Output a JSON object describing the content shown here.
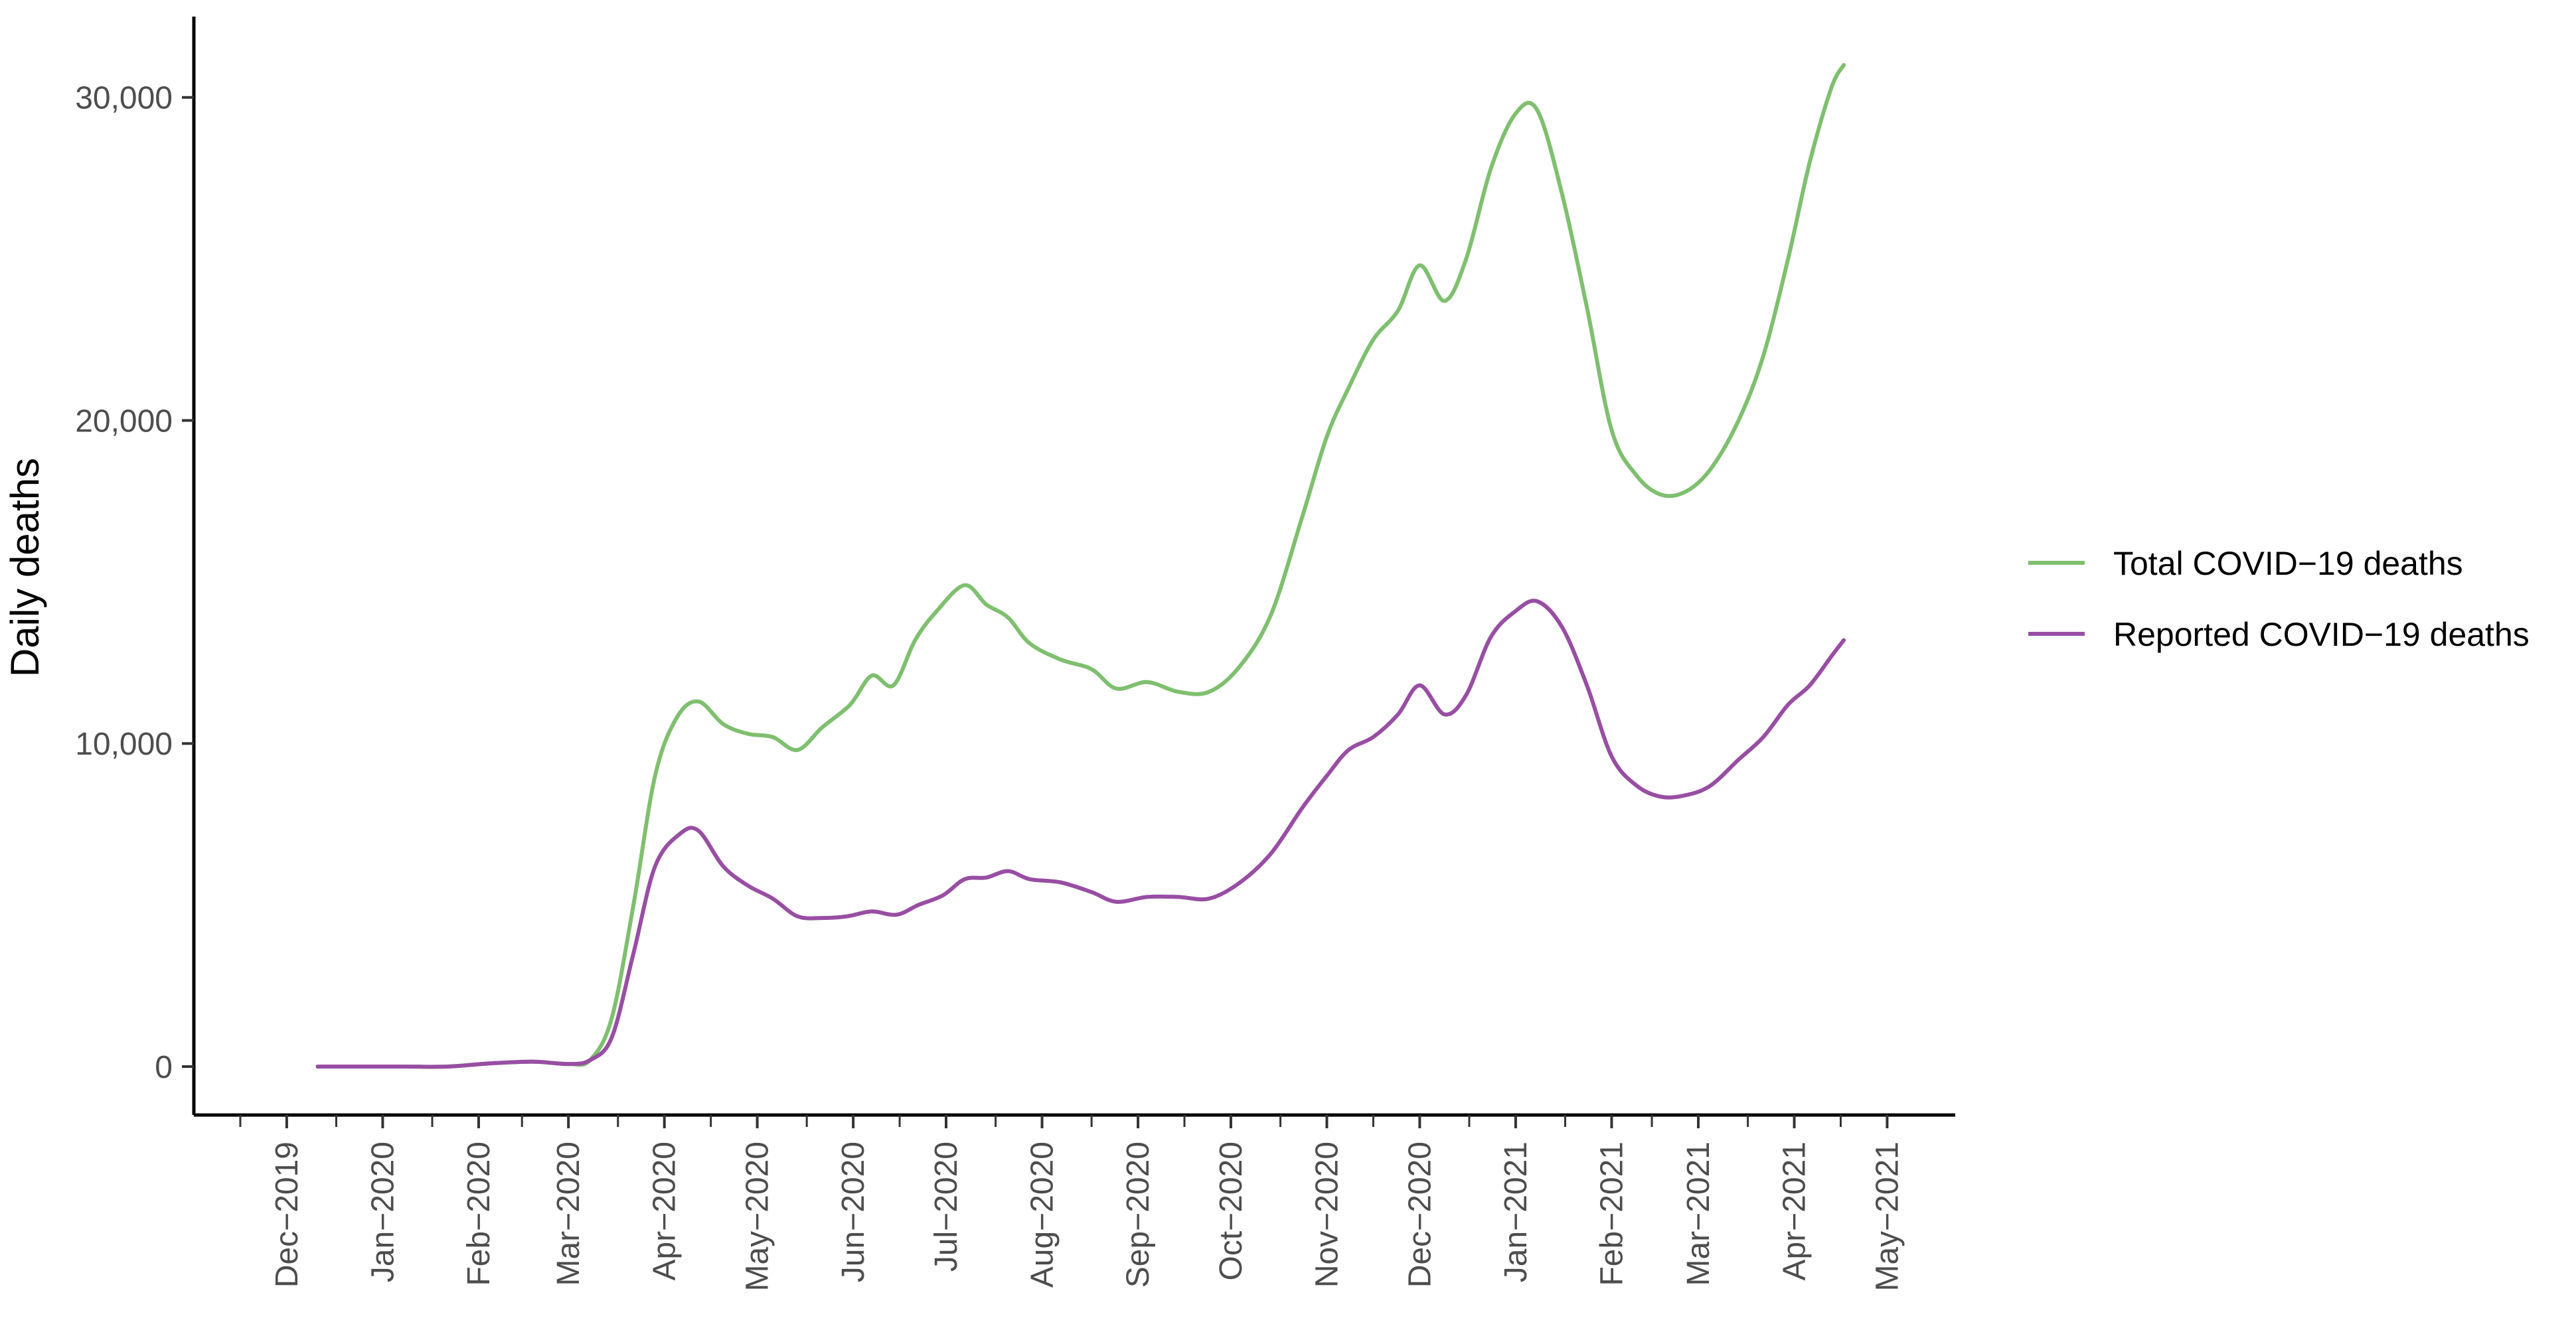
{
  "chart_data": {
    "type": "line",
    "xlabel": "",
    "ylabel": "Daily deaths",
    "x_tick_labels": [
      "Dec−2019",
      "Jan−2020",
      "Feb−2020",
      "Mar−2020",
      "Apr−2020",
      "May−2020",
      "Jun−2020",
      "Jul−2020",
      "Aug−2020",
      "Sep−2020",
      "Oct−2020",
      "Nov−2020",
      "Dec−2020",
      "Jan−2021",
      "Feb−2021",
      "Mar−2021",
      "Apr−2021",
      "May−2021"
    ],
    "x_tick_dates": [
      "2019-12-01",
      "2020-01-01",
      "2020-02-01",
      "2020-03-01",
      "2020-04-01",
      "2020-05-01",
      "2020-06-01",
      "2020-07-01",
      "2020-08-01",
      "2020-09-01",
      "2020-10-01",
      "2020-11-01",
      "2020-12-01",
      "2021-01-01",
      "2021-02-01",
      "2021-03-01",
      "2021-04-01",
      "2021-05-01"
    ],
    "x_range": [
      "2019-11-01",
      "2021-05-23"
    ],
    "y_ticks": [
      0,
      10000,
      20000,
      30000
    ],
    "y_tick_labels": [
      "0",
      "10,000",
      "20,000",
      "30,000"
    ],
    "ylim": [
      -1500,
      32500
    ],
    "grid": false,
    "legend_position": "right",
    "series": [
      {
        "name": "Total COVID−19 deaths",
        "color": "#7fbf6f",
        "points": [
          [
            "2019-12-11",
            0
          ],
          [
            "2019-12-25",
            0
          ],
          [
            "2020-01-08",
            0
          ],
          [
            "2020-01-22",
            0
          ],
          [
            "2020-02-05",
            100
          ],
          [
            "2020-02-19",
            150
          ],
          [
            "2020-03-01",
            80
          ],
          [
            "2020-03-08",
            200
          ],
          [
            "2020-03-15",
            1500
          ],
          [
            "2020-03-22",
            5000
          ],
          [
            "2020-03-29",
            9000
          ],
          [
            "2020-04-05",
            10800
          ],
          [
            "2020-04-12",
            11300
          ],
          [
            "2020-04-20",
            10600
          ],
          [
            "2020-04-28",
            10300
          ],
          [
            "2020-05-06",
            10200
          ],
          [
            "2020-05-14",
            9800
          ],
          [
            "2020-05-22",
            10500
          ],
          [
            "2020-05-31",
            11200
          ],
          [
            "2020-06-07",
            12100
          ],
          [
            "2020-06-14",
            11800
          ],
          [
            "2020-06-21",
            13200
          ],
          [
            "2020-06-28",
            14100
          ],
          [
            "2020-07-07",
            14900
          ],
          [
            "2020-07-14",
            14300
          ],
          [
            "2020-07-21",
            13900
          ],
          [
            "2020-07-28",
            13100
          ],
          [
            "2020-08-07",
            12600
          ],
          [
            "2020-08-17",
            12300
          ],
          [
            "2020-08-25",
            11700
          ],
          [
            "2020-09-04",
            11900
          ],
          [
            "2020-09-14",
            11600
          ],
          [
            "2020-09-24",
            11600
          ],
          [
            "2020-10-04",
            12400
          ],
          [
            "2020-10-14",
            14000
          ],
          [
            "2020-10-24",
            17000
          ],
          [
            "2020-11-01",
            19500
          ],
          [
            "2020-11-08",
            21000
          ],
          [
            "2020-11-16",
            22500
          ],
          [
            "2020-11-24",
            23400
          ],
          [
            "2020-12-01",
            24800
          ],
          [
            "2020-12-09",
            23700
          ],
          [
            "2020-12-16",
            25000
          ],
          [
            "2020-12-24",
            27800
          ],
          [
            "2021-01-01",
            29500
          ],
          [
            "2021-01-08",
            29600
          ],
          [
            "2021-01-16",
            27000
          ],
          [
            "2021-01-24",
            23500
          ],
          [
            "2021-02-01",
            19700
          ],
          [
            "2021-02-09",
            18300
          ],
          [
            "2021-02-17",
            17700
          ],
          [
            "2021-02-25",
            17800
          ],
          [
            "2021-03-05",
            18500
          ],
          [
            "2021-03-14",
            20000
          ],
          [
            "2021-03-22",
            22000
          ],
          [
            "2021-03-30",
            25000
          ],
          [
            "2021-04-06",
            28000
          ],
          [
            "2021-04-13",
            30300
          ],
          [
            "2021-04-17",
            31000
          ]
        ]
      },
      {
        "name": "Reported COVID−19 deaths",
        "color": "#984ea3",
        "points": [
          [
            "2019-12-11",
            0
          ],
          [
            "2019-12-25",
            0
          ],
          [
            "2020-01-08",
            0
          ],
          [
            "2020-01-22",
            0
          ],
          [
            "2020-02-05",
            100
          ],
          [
            "2020-02-19",
            150
          ],
          [
            "2020-03-01",
            80
          ],
          [
            "2020-03-08",
            200
          ],
          [
            "2020-03-15",
            900
          ],
          [
            "2020-03-22",
            3500
          ],
          [
            "2020-03-29",
            6200
          ],
          [
            "2020-04-06",
            7200
          ],
          [
            "2020-04-12",
            7300
          ],
          [
            "2020-04-20",
            6200
          ],
          [
            "2020-04-28",
            5600
          ],
          [
            "2020-05-06",
            5200
          ],
          [
            "2020-05-14",
            4650
          ],
          [
            "2020-05-22",
            4600
          ],
          [
            "2020-05-30",
            4650
          ],
          [
            "2020-06-07",
            4800
          ],
          [
            "2020-06-15",
            4700
          ],
          [
            "2020-06-22",
            5000
          ],
          [
            "2020-06-30",
            5300
          ],
          [
            "2020-07-07",
            5800
          ],
          [
            "2020-07-14",
            5850
          ],
          [
            "2020-07-21",
            6050
          ],
          [
            "2020-07-28",
            5800
          ],
          [
            "2020-08-07",
            5700
          ],
          [
            "2020-08-17",
            5400
          ],
          [
            "2020-08-25",
            5100
          ],
          [
            "2020-09-04",
            5250
          ],
          [
            "2020-09-14",
            5250
          ],
          [
            "2020-09-24",
            5200
          ],
          [
            "2020-10-04",
            5700
          ],
          [
            "2020-10-14",
            6600
          ],
          [
            "2020-10-24",
            8000
          ],
          [
            "2020-11-01",
            9000
          ],
          [
            "2020-11-08",
            9800
          ],
          [
            "2020-11-16",
            10200
          ],
          [
            "2020-11-24",
            10900
          ],
          [
            "2020-12-01",
            11800
          ],
          [
            "2020-12-09",
            10900
          ],
          [
            "2020-12-16",
            11500
          ],
          [
            "2020-12-24",
            13300
          ],
          [
            "2021-01-01",
            14100
          ],
          [
            "2021-01-08",
            14400
          ],
          [
            "2021-01-16",
            13600
          ],
          [
            "2021-01-24",
            11800
          ],
          [
            "2021-02-01",
            9600
          ],
          [
            "2021-02-09",
            8700
          ],
          [
            "2021-02-17",
            8350
          ],
          [
            "2021-02-25",
            8400
          ],
          [
            "2021-03-05",
            8700
          ],
          [
            "2021-03-14",
            9500
          ],
          [
            "2021-03-22",
            10200
          ],
          [
            "2021-03-30",
            11200
          ],
          [
            "2021-04-06",
            11800
          ],
          [
            "2021-04-13",
            12700
          ],
          [
            "2021-04-17",
            13200
          ]
        ]
      }
    ]
  }
}
